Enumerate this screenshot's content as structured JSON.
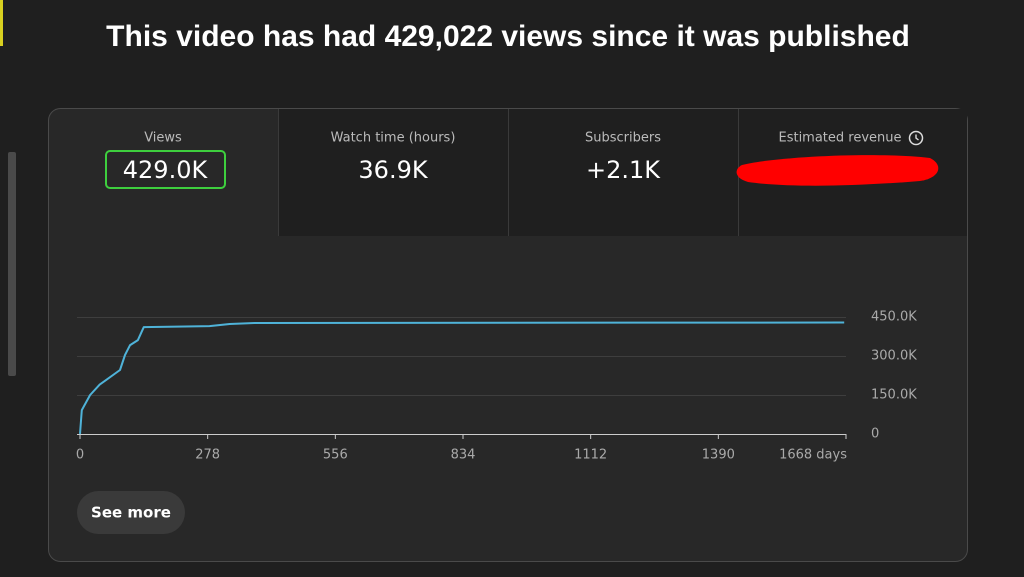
{
  "title": "This video has had 429,022 views since it was published",
  "metrics": [
    {
      "label": "Views",
      "value": "429.0K"
    },
    {
      "label": "Watch time (hours)",
      "value": "36.9K"
    },
    {
      "label": "Subscribers",
      "value": "+2.1K"
    },
    {
      "label": "Estimated revenue"
    }
  ],
  "chart_data": {
    "type": "line",
    "x": [
      0,
      4,
      22,
      43,
      87,
      98,
      109,
      126,
      139,
      282,
      326,
      380,
      1664
    ],
    "values": [
      0,
      92000,
      150000,
      190000,
      246000,
      304000,
      342000,
      361000,
      411000,
      415000,
      423000,
      427000,
      429000
    ],
    "color": "#4fb3d9",
    "xlim": [
      0,
      1668
    ],
    "xticks": [
      0,
      278,
      556,
      834,
      1112,
      1390,
      {
        "value": 1668,
        "label": "1668 days"
      }
    ],
    "ylim": [
      0,
      450000
    ],
    "yticks": [
      0,
      {
        "value": 150000,
        "label": "150.0K"
      },
      {
        "value": 300000,
        "label": "300.0K"
      },
      {
        "value": 450000,
        "label": "450.0K"
      }
    ],
    "grid": true
  },
  "button": "See more"
}
